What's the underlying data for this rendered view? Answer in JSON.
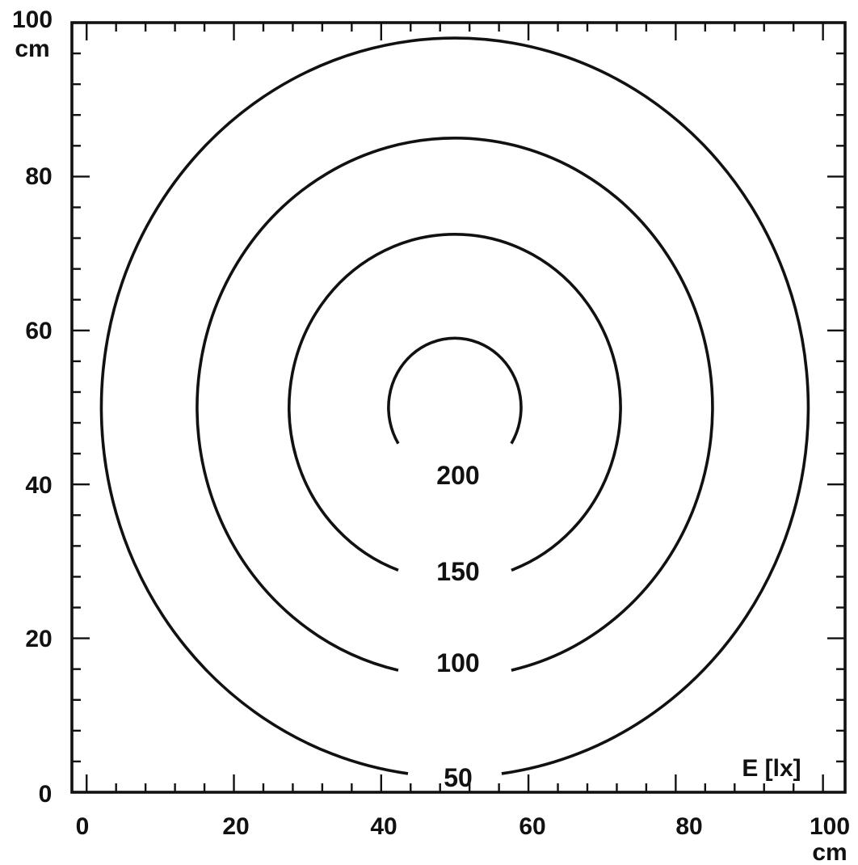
{
  "chart_data": {
    "type": "contour",
    "xlabel": "cm",
    "ylabel": "cm",
    "z_label": "E [lx]",
    "xlim": [
      -2,
      103
    ],
    "ylim": [
      0,
      100
    ],
    "x_ticks": [
      "0",
      "20",
      "40",
      "60",
      "80",
      "100"
    ],
    "y_ticks": [
      "0",
      "20",
      "40",
      "60",
      "80",
      "100"
    ],
    "x_tick_values": [
      0,
      20,
      40,
      60,
      80,
      100
    ],
    "y_tick_values": [
      0,
      20,
      40,
      60,
      80,
      100
    ],
    "center": {
      "x": 50,
      "y": 50
    },
    "contours": [
      {
        "level": "50",
        "radius": 48
      },
      {
        "level": "100",
        "radius": 35
      },
      {
        "level": "150",
        "radius": 22.5
      },
      {
        "level": "200",
        "radius": 9
      }
    ]
  }
}
